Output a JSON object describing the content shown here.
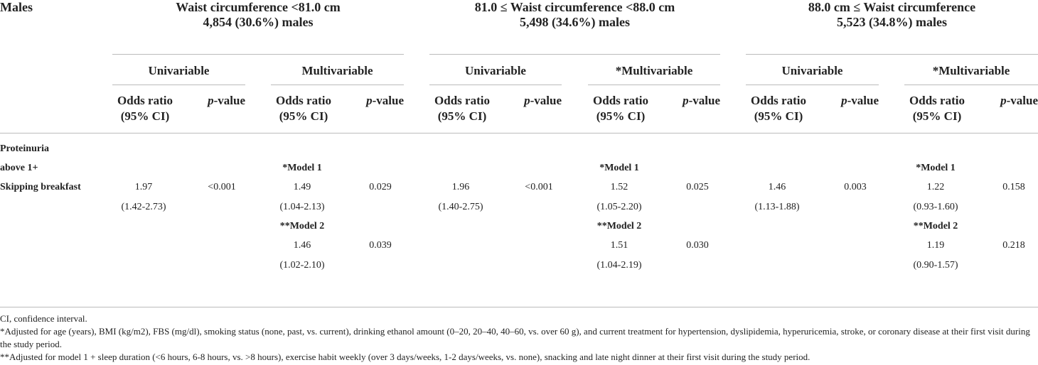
{
  "header": {
    "row_title": "Males",
    "odds_ratio": "Odds ratio",
    "ci": "(95% CI)",
    "p_italic": "p",
    "p_rest": "-value"
  },
  "groups": [
    {
      "title": "Waist circumference <81.0 cm",
      "count": "4,854 (30.6%) males",
      "univariable": {
        "heading": "Univariable",
        "odds_ratio": "1.97",
        "ci": "(1.42-2.73)",
        "p_value": "<0.001"
      },
      "multivariable": {
        "heading": "Multivariable",
        "models": [
          {
            "label": "*Model 1",
            "odds_ratio": "1.49",
            "ci": "(1.04-2.13)",
            "p_value": "0.029"
          },
          {
            "label": "**Model 2",
            "odds_ratio": "1.46",
            "ci": "(1.02-2.10)",
            "p_value": "0.039"
          }
        ]
      }
    },
    {
      "title": "81.0 ≤ Waist circumference <88.0 cm",
      "count": "5,498 (34.6%) males",
      "univariable": {
        "heading": "Univariable",
        "odds_ratio": "1.96",
        "ci": "(1.40-2.75)",
        "p_value": "<0.001"
      },
      "multivariable": {
        "heading": "*Multivariable",
        "models": [
          {
            "label": "*Model 1",
            "odds_ratio": "1.52",
            "ci": "(1.05-2.20)",
            "p_value": "0.025"
          },
          {
            "label": "**Model 2",
            "odds_ratio": "1.51",
            "ci": "(1.04-2.19)",
            "p_value": "0.030"
          }
        ]
      }
    },
    {
      "title": "88.0 cm ≤ Waist circumference",
      "count": "5,523 (34.8%) males",
      "univariable": {
        "heading": "Univariable",
        "odds_ratio": "1.46",
        "ci": "(1.13-1.88)",
        "p_value": "0.003"
      },
      "multivariable": {
        "heading": "*Multivariable",
        "models": [
          {
            "label": "*Model 1",
            "odds_ratio": "1.22",
            "ci": "(0.93-1.60)",
            "p_value": "0.158"
          },
          {
            "label": "**Model 2",
            "odds_ratio": "1.19",
            "ci": "(0.90-1.57)",
            "p_value": "0.218"
          }
        ]
      }
    }
  ],
  "row_labels": [
    "Proteinuria",
    "above 1+",
    "Skipping breakfast"
  ],
  "footnotes": [
    "CI, confidence interval.",
    "*Adjusted for age (years), BMI (kg/m2), FBS (mg/dl), smoking status (none, past, vs. current), drinking ethanol amount (0–20, 20–40, 40–60, vs. over 60 g), and current treatment for hypertension, dyslipidemia, hyperuricemia, stroke, or coronary disease at their first visit during the study period.",
    "**Adjusted for model 1 + sleep duration (<6 hours, 6-8 hours, vs. >8 hours), exercise habit weekly (over 3 days/weeks, 1-2 days/weeks, vs. none), snacking and late night dinner at their first visit during the study period."
  ]
}
